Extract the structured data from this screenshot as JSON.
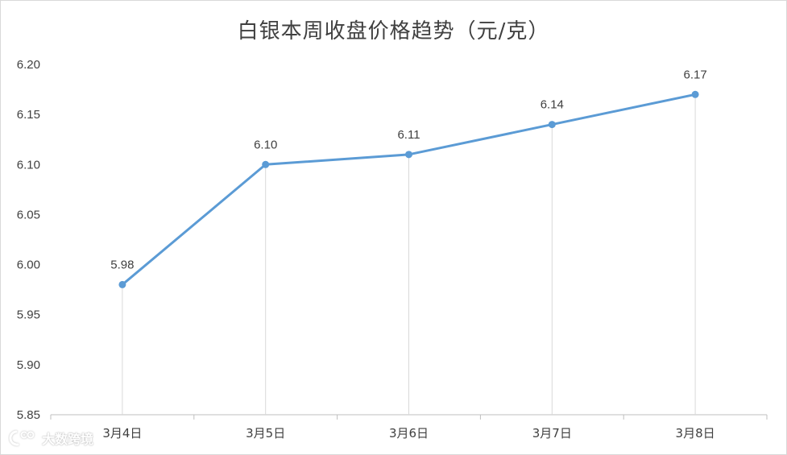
{
  "chart_data": {
    "type": "line",
    "title": "白银本周收盘价格趋势（元/克）",
    "categories": [
      "3月4日",
      "3月5日",
      "3月6日",
      "3月7日",
      "3月8日"
    ],
    "series": [
      {
        "values": [
          5.98,
          6.1,
          6.11,
          6.14,
          6.17
        ],
        "data_labels": [
          "5.98",
          "6.10",
          "6.11",
          "6.14",
          "6.17"
        ]
      }
    ],
    "ylim": [
      5.85,
      6.2
    ],
    "yticks": [
      "5.85",
      "5.90",
      "5.95",
      "6.00",
      "6.05",
      "6.10",
      "6.15",
      "6.20"
    ],
    "xlabel": "",
    "ylabel": "",
    "grid": false,
    "drop_lines": true,
    "colors": {
      "line": "#5b9bd5",
      "drop_line": "#d9d9d9",
      "axis": "#bfbfbf",
      "text": "#404040"
    }
  },
  "watermark": {
    "text": "大数跨境",
    "icon": "watermark-logo-icon"
  }
}
